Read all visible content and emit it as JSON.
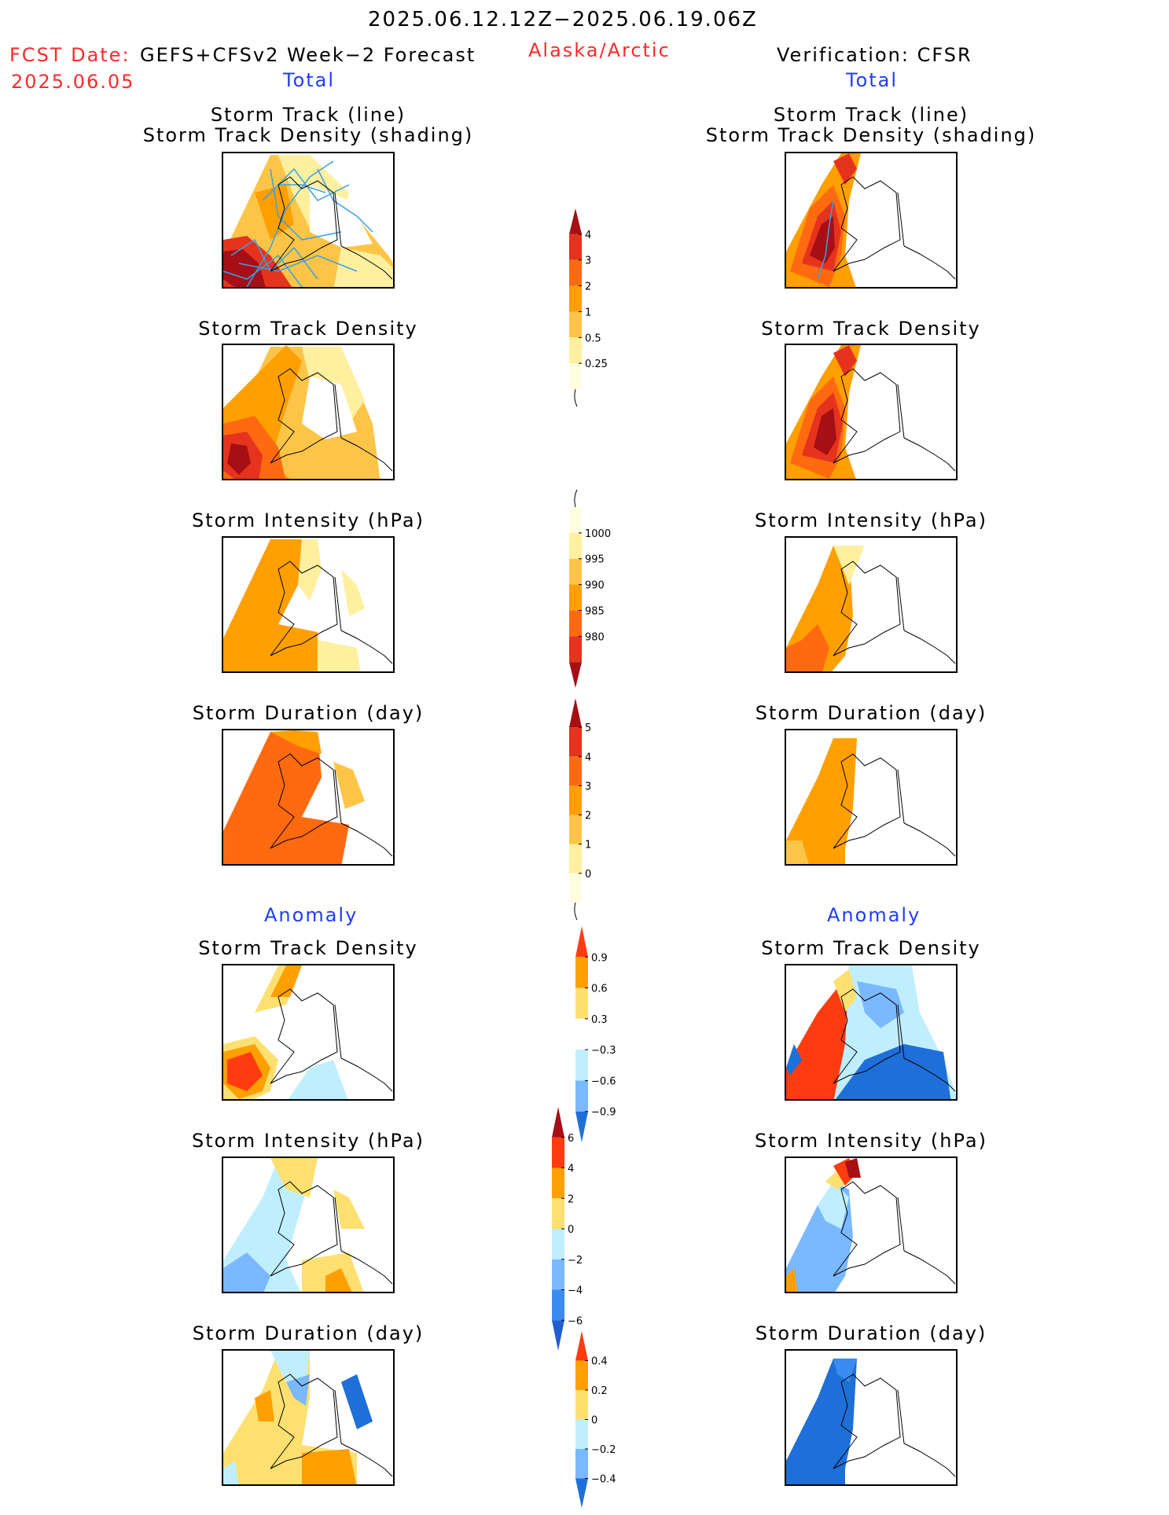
{
  "header": {
    "date_range": "2025.06.12.12Z−2025.06.19.06Z",
    "fcst_label": "FCST Date:",
    "fcst_model": "GEFS+CFSv2 Week−2 Forecast",
    "fcst_date": "2025.06.05",
    "region": "Alaska/Arctic",
    "verification": "Verification: CFSR"
  },
  "sections": {
    "total": "Total",
    "anomaly": "Anomaly"
  },
  "panel_titles": {
    "track_line": "Storm Track (line)",
    "track_density_shading": "Storm Track Density (shading)",
    "track_density": "Storm Track Density",
    "intensity": "Storm Intensity (hPa)",
    "duration": "Storm Duration (day)"
  },
  "colorbars": [
    {
      "id": "density_total",
      "ticks": [
        "4",
        "3",
        "2",
        "1",
        "0.5",
        "0.25"
      ],
      "colors": [
        "#a50f15",
        "#e6331d",
        "#ff6a10",
        "#ff9f00",
        "#fdc548",
        "#fff0a0",
        "#fffde0"
      ]
    },
    {
      "id": "intensity_total",
      "ticks": [
        "1000",
        "995",
        "990",
        "985",
        "980"
      ],
      "colors": [
        "#fffde0",
        "#fff0a0",
        "#fdc548",
        "#ff9f00",
        "#ff6a10",
        "#e6331d",
        "#a50f15"
      ]
    },
    {
      "id": "duration_total",
      "ticks": [
        "5",
        "4",
        "3",
        "2",
        "1",
        "0"
      ],
      "colors": [
        "#a50f15",
        "#e6331d",
        "#ff6a10",
        "#ff9f00",
        "#fdc548",
        "#fff0a0",
        "#fffde0"
      ]
    },
    {
      "id": "density_anom",
      "ticks": [
        "0.9",
        "0.6",
        "0.3",
        "−0.3",
        "−0.6",
        "−0.9"
      ],
      "colors": [
        "#ff3b10",
        "#ff9f00",
        "#fde070",
        "#ffffff",
        "#bfefff",
        "#7ab8ff",
        "#1f6fd8"
      ]
    },
    {
      "id": "intensity_anom",
      "ticks": [
        "6",
        "4",
        "2",
        "0",
        "−2",
        "−4",
        "−6"
      ],
      "colors": [
        "#a50f15",
        "#ff3b10",
        "#ff9f00",
        "#fde070",
        "#bfefff",
        "#7ab8ff",
        "#3a8cf0",
        "#1f5fd0"
      ]
    },
    {
      "id": "duration_anom",
      "ticks": [
        "0.4",
        "0.2",
        "0",
        "−0.2",
        "−0.4"
      ],
      "colors": [
        "#ff3b10",
        "#ff9f00",
        "#fde070",
        "#bfefff",
        "#7ab8ff",
        "#1f6fd8"
      ]
    }
  ],
  "colors": {
    "title_red": "#ff2a2a",
    "section_blue": "#1f3cff",
    "track_line": "#3aa0e0"
  }
}
